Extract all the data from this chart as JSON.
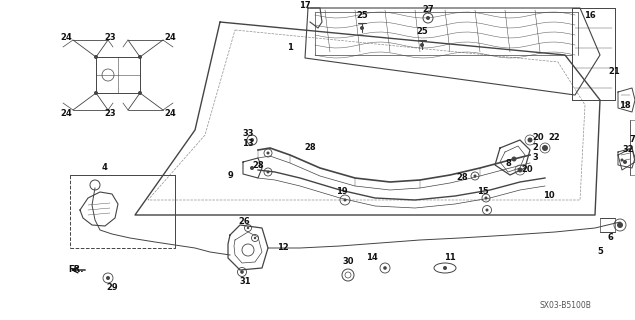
{
  "bg_color": "#ffffff",
  "diagram_code": "SX03-B5100B",
  "fig_width": 6.35,
  "fig_height": 3.2,
  "dpi": 100,
  "lc": "#444444",
  "tc": "#111111"
}
